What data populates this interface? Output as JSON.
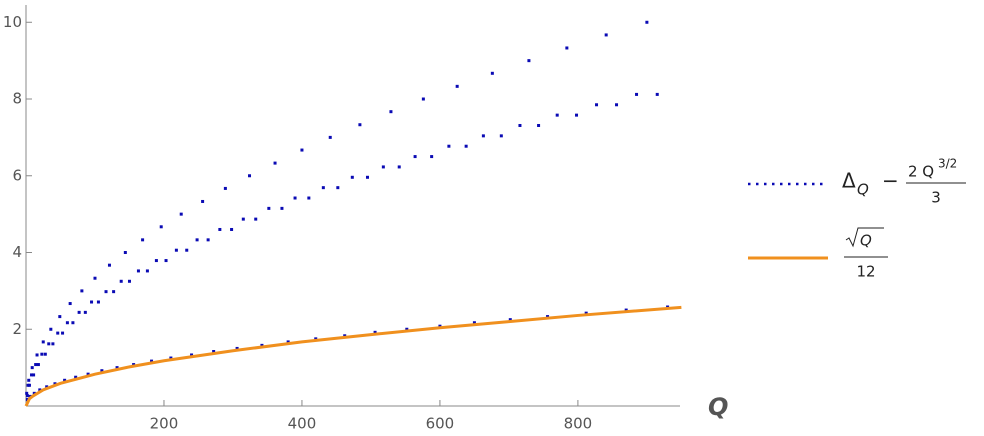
{
  "chart_data": {
    "type": "scatter",
    "xlabel": "Q",
    "xlim": [
      0,
      948
    ],
    "ylim": [
      0,
      10.45
    ],
    "xticks": [
      200,
      400,
      600,
      800
    ],
    "yticks": [
      2,
      4,
      6,
      8,
      10
    ],
    "grid": false,
    "series": [
      {
        "type": "scatter",
        "color": "#0a0ab4",
        "label": {
          "symbol": "Δ",
          "sub": "Q",
          "minus": "−",
          "num": "2 Q",
          "sup": "3/2",
          "den": "3"
        },
        "x": [
          1,
          2,
          2,
          3,
          4,
          5,
          6,
          8,
          9,
          11,
          12,
          14,
          16,
          18,
          20,
          23,
          25,
          28,
          30,
          33,
          36,
          39,
          42,
          46,
          49,
          53,
          56,
          60,
          64,
          68,
          72,
          77,
          81,
          86,
          90,
          95,
          100,
          105,
          110,
          116,
          121,
          127,
          132,
          138,
          144,
          150,
          156,
          163,
          169,
          176,
          182,
          189,
          196,
          203,
          210,
          218,
          225,
          233,
          240,
          248,
          256,
          264,
          272,
          281,
          289,
          298,
          306,
          315,
          324,
          333,
          342,
          352,
          361,
          371,
          380,
          390,
          400,
          410,
          420,
          431,
          441,
          452,
          462,
          473,
          484,
          495,
          506,
          518,
          529,
          541,
          552,
          564,
          576,
          588,
          600,
          613,
          625,
          638,
          650,
          663,
          676,
          689,
          702,
          716,
          729,
          743,
          756,
          770,
          784,
          798,
          812,
          827,
          841,
          856,
          870,
          885,
          900,
          915,
          930
        ],
        "values": [
          0.33,
          0.27,
          0.17,
          0.54,
          0.67,
          0.54,
          0.25,
          0.81,
          1,
          0.81,
          0.33,
          1.08,
          1.33,
          1.08,
          0.42,
          1.35,
          1.67,
          1.35,
          0.5,
          1.62,
          2,
          1.62,
          0.58,
          1.9,
          2.33,
          1.9,
          0.67,
          2.17,
          2.67,
          2.17,
          0.75,
          2.44,
          3,
          2.44,
          0.83,
          2.71,
          3.33,
          2.71,
          0.92,
          2.98,
          3.67,
          2.98,
          1,
          3.25,
          4,
          3.25,
          1.08,
          3.52,
          4.33,
          3.52,
          1.17,
          3.79,
          4.67,
          3.79,
          1.25,
          4.06,
          5,
          4.06,
          1.33,
          4.33,
          5.33,
          4.33,
          1.42,
          4.6,
          5.67,
          4.6,
          1.5,
          4.87,
          6,
          4.87,
          1.58,
          5.15,
          6.33,
          5.15,
          1.67,
          5.42,
          6.67,
          5.42,
          1.75,
          5.69,
          7,
          5.69,
          1.83,
          5.96,
          7.33,
          5.96,
          1.92,
          6.23,
          7.67,
          6.23,
          2,
          6.5,
          8,
          6.5,
          2.08,
          6.77,
          8.33,
          6.77,
          2.17,
          7.04,
          8.67,
          7.04,
          2.25,
          7.31,
          9,
          7.31,
          2.33,
          7.58,
          9.33,
          7.58,
          2.42,
          7.85,
          9.67,
          7.85,
          2.5,
          8.12,
          10,
          8.12,
          2.58
        ]
      },
      {
        "type": "line",
        "color": "#f0901e",
        "label": {
          "rad": "Q",
          "den": "12"
        },
        "x": [
          0,
          5,
          10,
          25,
          50,
          100,
          150,
          200,
          300,
          400,
          500,
          600,
          700,
          800,
          950
        ],
        "values": [
          0,
          0.19,
          0.26,
          0.42,
          0.59,
          0.83,
          1.02,
          1.18,
          1.44,
          1.67,
          1.86,
          2.04,
          2.2,
          2.36,
          2.57
        ]
      }
    ]
  }
}
